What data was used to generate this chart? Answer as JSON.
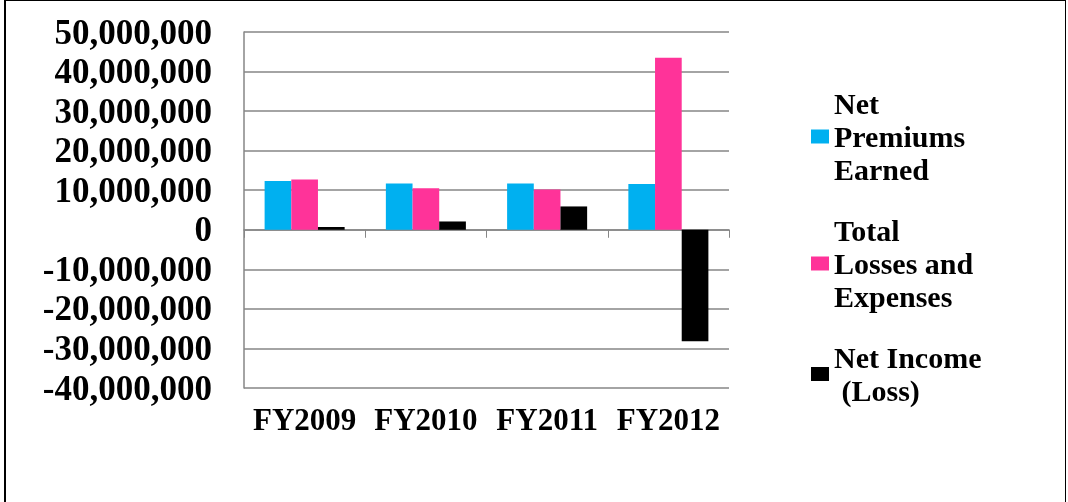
{
  "chart_data": {
    "type": "bar",
    "categories": [
      "FY2009",
      "FY2010",
      "FY2011",
      "FY2012"
    ],
    "series": [
      {
        "name": "Net Premiums Earned",
        "color": "#00b0f0",
        "values": [
          12300000,
          11700000,
          11700000,
          11600000
        ]
      },
      {
        "name": "Total Losses and Expenses",
        "color": "#ff3399",
        "values": [
          12700000,
          10500000,
          10200000,
          43500000
        ]
      },
      {
        "name": "Net Income (Loss)",
        "color": "#000000",
        "values": [
          700000,
          2100000,
          5900000,
          -28200000
        ]
      }
    ],
    "ylim": [
      -40000000,
      50000000
    ],
    "yticks": [
      {
        "value": -40000000,
        "label": "-40,000,000"
      },
      {
        "value": -30000000,
        "label": "-30,000,000"
      },
      {
        "value": -20000000,
        "label": "-20,000,000"
      },
      {
        "value": -10000000,
        "label": "-10,000,000"
      },
      {
        "value": 0,
        "label": "0"
      },
      {
        "value": 10000000,
        "label": "10,000,000"
      },
      {
        "value": 20000000,
        "label": "20,000,000"
      },
      {
        "value": 30000000,
        "label": "30,000,000"
      },
      {
        "value": 40000000,
        "label": "40,000,000"
      },
      {
        "value": 50000000,
        "label": "50,000,000"
      }
    ],
    "grid": "y",
    "legend": "right"
  }
}
